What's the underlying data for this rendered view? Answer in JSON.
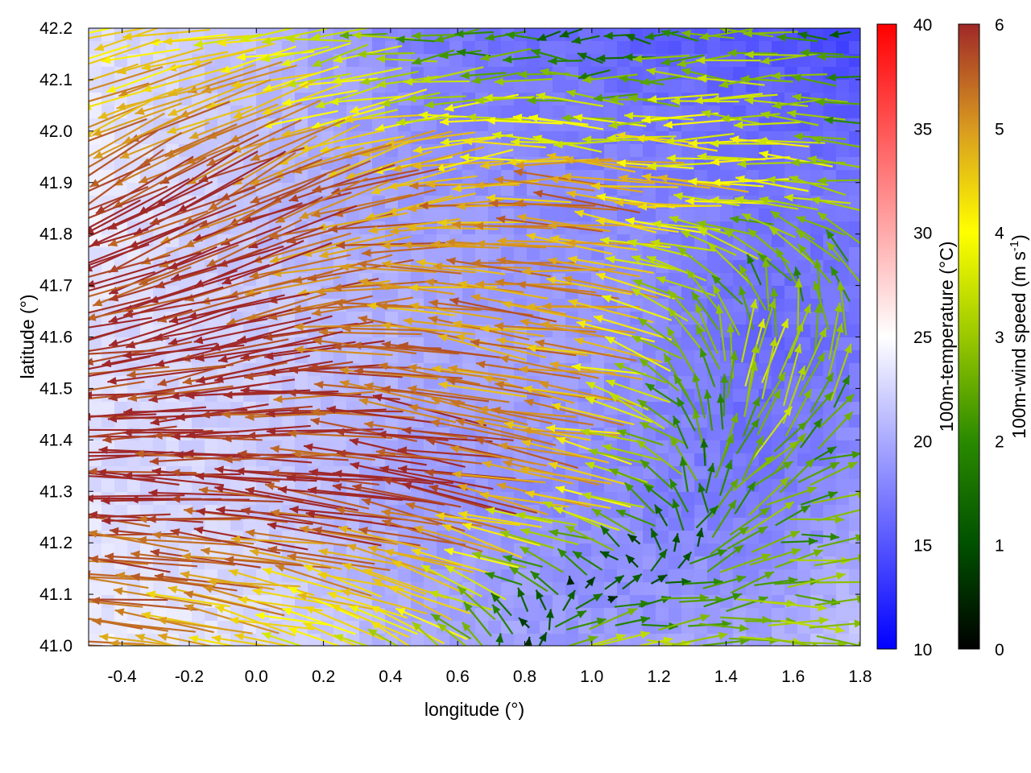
{
  "chart_data": {
    "type": "heatmap",
    "subtype": "vector field over temperature map",
    "xlabel": "longitude (°)",
    "ylabel": "latitude (°)",
    "xlim": [
      -0.5,
      1.8
    ],
    "ylim": [
      41.0,
      42.2
    ],
    "xticks": [
      "-0.4",
      "-0.2",
      "0.0",
      "0.2",
      "0.4",
      "0.6",
      "0.8",
      "1.0",
      "1.2",
      "1.4",
      "1.6",
      "1.8"
    ],
    "xtick_values": [
      -0.4,
      -0.2,
      0.0,
      0.2,
      0.4,
      0.6,
      0.8,
      1.0,
      1.2,
      1.4,
      1.6,
      1.8
    ],
    "yticks": [
      "41.0",
      "41.1",
      "41.2",
      "41.3",
      "41.4",
      "41.5",
      "41.6",
      "41.7",
      "41.8",
      "41.9",
      "42.0",
      "42.1",
      "42.2"
    ],
    "ytick_values": [
      41.0,
      41.1,
      41.2,
      41.3,
      41.4,
      41.5,
      41.6,
      41.7,
      41.8,
      41.9,
      42.0,
      42.1,
      42.2
    ],
    "temperature_colorbar": {
      "label": "100m-temperature (°C)",
      "range": [
        10,
        40
      ],
      "ticks": [
        "10",
        "15",
        "20",
        "25",
        "30",
        "35",
        "40"
      ],
      "tick_values": [
        10,
        15,
        20,
        25,
        30,
        35,
        40
      ],
      "colors": [
        "#0000ff",
        "#ffffff",
        "#ff0000"
      ]
    },
    "wind_colorbar": {
      "label": "100m-wind speed (m s",
      "label_sup": "-1",
      "label_end": ")",
      "range": [
        0,
        6
      ],
      "ticks": [
        "0",
        "1",
        "2",
        "3",
        "4",
        "5",
        "6"
      ],
      "tick_values": [
        0,
        1,
        2,
        3,
        4,
        5,
        6
      ],
      "colors": [
        "#000000",
        "#005000",
        "#2a8a00",
        "#9ac800",
        "#ffff00",
        "#d89a20",
        "#a02828"
      ]
    },
    "grid_lon": [
      -0.5,
      0.0,
      0.5,
      1.0,
      1.5,
      1.8
    ],
    "grid_lat": [
      41.0,
      41.3,
      41.6,
      41.9,
      42.2
    ],
    "wind_u": [
      [
        -5,
        -4,
        -3,
        3,
        3,
        3
      ],
      [
        -6,
        -6,
        -6,
        -4,
        2,
        2.5
      ],
      [
        -6,
        -6,
        -5,
        -5,
        1,
        0.5
      ],
      [
        -5,
        -5,
        -5,
        -5,
        -4,
        -3
      ],
      [
        -4,
        -4,
        -2,
        -1,
        -3,
        -1
      ]
    ],
    "wind_v": [
      [
        0.5,
        1,
        2,
        0.5,
        -0.3,
        -0.3
      ],
      [
        0.3,
        0.5,
        1,
        1,
        2,
        -0.2
      ],
      [
        -1,
        -1.5,
        1,
        0.5,
        3.5,
        3
      ],
      [
        -3,
        -2.5,
        -1,
        0.5,
        0,
        0.5
      ],
      [
        -1,
        -0.5,
        0,
        0,
        0,
        0
      ]
    ],
    "temperature": [
      [
        24,
        23,
        20,
        19,
        20,
        22
      ],
      [
        23,
        22,
        19,
        18,
        17,
        19
      ],
      [
        23,
        22,
        20,
        19,
        16,
        17
      ],
      [
        24,
        21,
        19,
        18,
        17,
        17
      ],
      [
        23,
        21,
        17,
        16,
        15,
        14
      ]
    ]
  }
}
